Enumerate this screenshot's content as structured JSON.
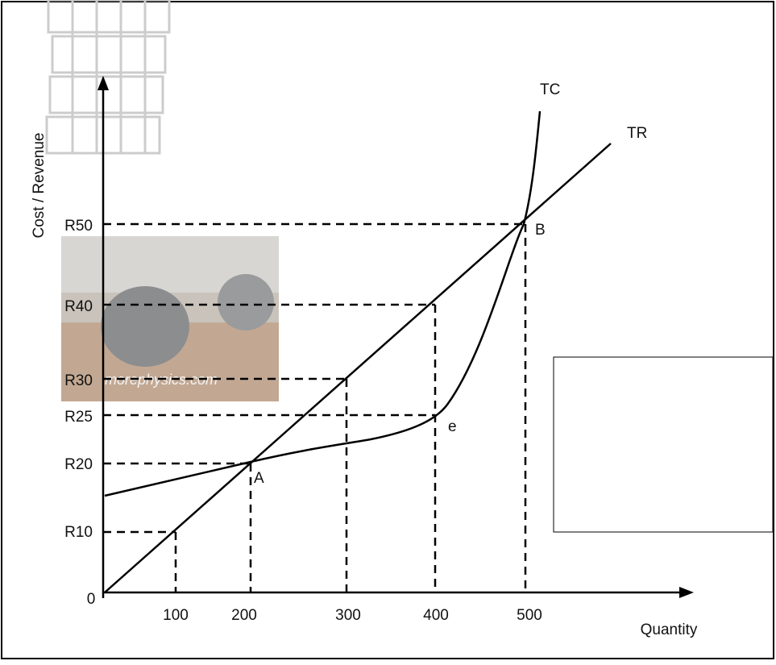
{
  "axis_labels": {
    "y": "Cost / Revenue",
    "x": "Quantity"
  },
  "origin": 0,
  "y_labels": [
    "R50",
    "R40",
    "R30",
    "R25",
    "R20",
    "R10"
  ],
  "x_labels": [
    100,
    200,
    300,
    400,
    500
  ],
  "curve_labels": [
    "TC",
    "TR"
  ],
  "point_labels": [
    "B",
    "A",
    "e"
  ],
  "watermark": "morephysics.com"
}
